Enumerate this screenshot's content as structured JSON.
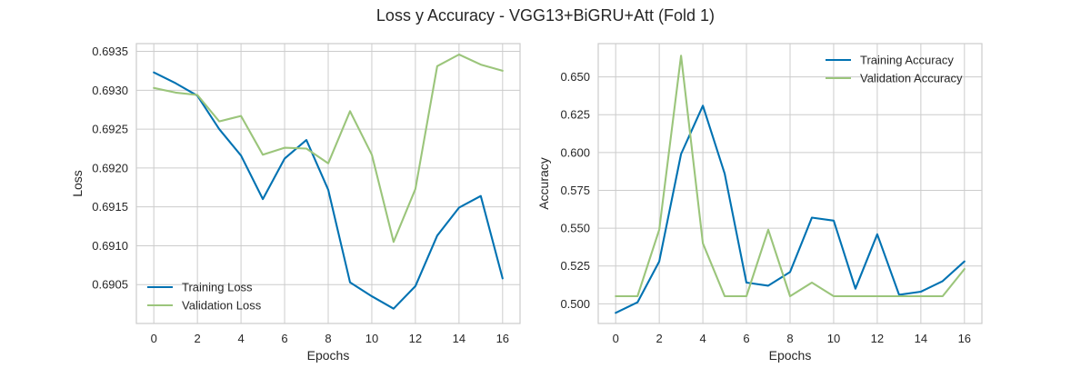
{
  "figure": {
    "title": "Loss y Accuracy - VGG13+BiGRU+Att (Fold 1)"
  },
  "chart_data": [
    {
      "type": "line",
      "xlabel": "Epochs",
      "ylabel": "Loss",
      "xlim": [
        -0.8,
        16.8
      ],
      "ylim": [
        0.69,
        0.6936
      ],
      "xticks": [
        0,
        2,
        4,
        6,
        8,
        10,
        12,
        14,
        16
      ],
      "yticks": [
        0.6905,
        0.691,
        0.6915,
        0.692,
        0.6925,
        0.693,
        0.6935
      ],
      "ytick_labels": [
        "0.6905",
        "0.6910",
        "0.6915",
        "0.6920",
        "0.6925",
        "0.6930",
        "0.6935"
      ],
      "grid": true,
      "legend_position": "lower left",
      "x": [
        0,
        1,
        2,
        3,
        4,
        5,
        6,
        7,
        8,
        9,
        10,
        11,
        12,
        13,
        14,
        15,
        16
      ],
      "series": [
        {
          "name": "Training Loss",
          "color": "#0072b2",
          "values": [
            0.69323,
            0.69309,
            0.69293,
            0.6925,
            0.69216,
            0.6916,
            0.69212,
            0.69236,
            0.69172,
            0.69053,
            0.69035,
            0.69019,
            0.69048,
            0.69113,
            0.69149,
            0.69164,
            0.69058
          ]
        },
        {
          "name": "Validation Loss",
          "color": "#9bc57b",
          "values": [
            0.69303,
            0.69297,
            0.69294,
            0.6926,
            0.69267,
            0.69217,
            0.69226,
            0.69225,
            0.69206,
            0.69273,
            0.69217,
            0.69105,
            0.69173,
            0.69331,
            0.69346,
            0.69333,
            0.69325
          ]
        }
      ]
    },
    {
      "type": "line",
      "xlabel": "Epochs",
      "ylabel": "Accuracy",
      "xlim": [
        -0.8,
        16.8
      ],
      "ylim": [
        0.487,
        0.672
      ],
      "xticks": [
        0,
        2,
        4,
        6,
        8,
        10,
        12,
        14,
        16
      ],
      "yticks": [
        0.5,
        0.525,
        0.55,
        0.575,
        0.6,
        0.625,
        0.65
      ],
      "ytick_labels": [
        "0.500",
        "0.525",
        "0.550",
        "0.575",
        "0.600",
        "0.625",
        "0.650"
      ],
      "grid": true,
      "legend_position": "upper right",
      "x": [
        0,
        1,
        2,
        3,
        4,
        5,
        6,
        7,
        8,
        9,
        10,
        11,
        12,
        13,
        14,
        15,
        16
      ],
      "series": [
        {
          "name": "Training Accuracy",
          "color": "#0072b2",
          "values": [
            0.494,
            0.501,
            0.528,
            0.599,
            0.631,
            0.586,
            0.514,
            0.512,
            0.521,
            0.557,
            0.555,
            0.51,
            0.546,
            0.506,
            0.508,
            0.515,
            0.528
          ]
        },
        {
          "name": "Validation Accuracy",
          "color": "#9bc57b",
          "values": [
            0.505,
            0.505,
            0.549,
            0.664,
            0.54,
            0.505,
            0.505,
            0.549,
            0.505,
            0.514,
            0.505,
            0.505,
            0.505,
            0.505,
            0.505,
            0.505,
            0.523
          ]
        }
      ]
    }
  ]
}
